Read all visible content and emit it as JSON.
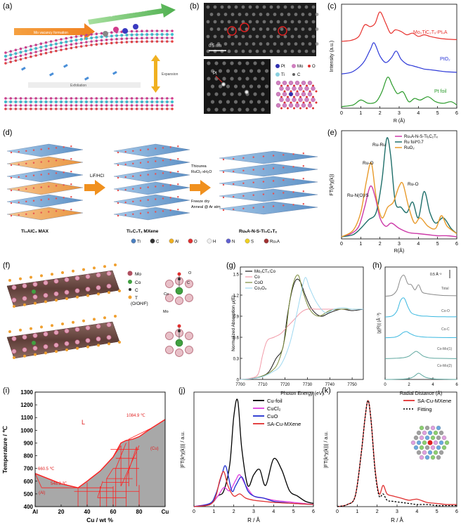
{
  "panel_labels": {
    "a": "(a)",
    "b": "(b)",
    "c": "(c)",
    "d": "(d)",
    "e": "(e)",
    "f": "(f)",
    "g": "(g)",
    "h": "(h)",
    "i": "(i)",
    "j": "(j)",
    "k": "(k)"
  },
  "panel_a": {
    "step1": "Mo vacancy formation",
    "step2": "Single atom immobilization",
    "step3": "Exfoliation",
    "step4": "Expansion"
  },
  "panel_b": {
    "scale": "0.5 nm",
    "pt_label": "Pt",
    "legend": [
      "Pt",
      "Mo",
      "O",
      "Ti",
      "C"
    ]
  },
  "panel_d": {
    "stage1": "Ti₃AlC₂ MAX",
    "stage2": "Ti₃C₂Tₓ MXene",
    "stage3": "RuₛA-N-S-Ti₃C₂Tₓ",
    "arrow1": "LiF/HCl",
    "arrow2_lines": [
      "Thiourea",
      "RuCl₃·xH₂O",
      "Freeze dry",
      "Anneal @ Ar atm"
    ],
    "legend": [
      "Ti",
      "C",
      "Al",
      "O",
      "H",
      "N",
      "S",
      "RuₛA"
    ]
  },
  "panel_f": {
    "legend": [
      "Mo",
      "Co",
      "C",
      "T (O/OH/F)"
    ],
    "t_label": "T",
    "side_label_lines": [
      "T",
      "(O/OH/F)"
    ],
    "c_label": "C",
    "o_label": "O",
    "co_label": "Co",
    "mo_label": "Mo"
  },
  "panel_h": {
    "scale_label": "0.5 Å⁻³"
  },
  "panel_i": {
    "region_L": "L",
    "t1": "1084.9 ℃",
    "t2": "660.5 ℃",
    "t3": "548.2 ℃",
    "al": "(Al)",
    "cu": "(Cu)"
  },
  "panel_k": {
    "legend_sa": "SA-Cu-MXene",
    "legend_fit": "Fitting"
  },
  "chart_data": [
    {
      "panel": "c",
      "type": "line",
      "xlabel": "R (Å)",
      "ylabel": "Intensity (a.u.)",
      "xlim": [
        0,
        6
      ],
      "xticks": [
        0,
        1,
        2,
        3,
        4,
        5,
        6
      ],
      "series": [
        {
          "name": "Mo₂TiC₂Tₓ-PtₛA",
          "color": "#e8322e",
          "offset": 2.0,
          "x": [
            0,
            0.5,
            0.9,
            1.2,
            1.5,
            1.75,
            2.0,
            2.3,
            2.55,
            2.8,
            3.1,
            3.4,
            3.7,
            4.0,
            4.3,
            4.6,
            5.0,
            5.4,
            6.0
          ],
          "y": [
            0.05,
            0.08,
            0.2,
            0.55,
            0.5,
            0.6,
            0.95,
            0.6,
            0.3,
            0.4,
            0.35,
            0.25,
            0.3,
            0.2,
            0.25,
            0.2,
            0.15,
            0.12,
            0.1
          ]
        },
        {
          "name": "PtO₂",
          "color": "#2e3ad8",
          "offset": 1.0,
          "x": [
            0,
            0.5,
            0.9,
            1.2,
            1.5,
            1.7,
            2.0,
            2.3,
            2.6,
            2.85,
            3.1,
            3.4,
            3.7,
            4.0,
            4.3,
            4.6,
            5.0,
            5.4,
            6.0
          ],
          "y": [
            0.05,
            0.1,
            0.25,
            0.45,
            0.8,
            1.0,
            0.6,
            0.4,
            0.55,
            0.75,
            0.5,
            0.35,
            0.3,
            0.25,
            0.2,
            0.18,
            0.15,
            0.12,
            0.1
          ]
        },
        {
          "name": "Pt foil",
          "color": "#2a9a2a",
          "offset": 0.0,
          "x": [
            0,
            0.6,
            1.0,
            1.4,
            1.8,
            2.1,
            2.4,
            2.65,
            2.9,
            3.2,
            3.5,
            3.8,
            4.1,
            4.5,
            4.9,
            5.3,
            5.7,
            6.0
          ],
          "y": [
            0.05,
            0.1,
            0.25,
            0.15,
            0.2,
            0.5,
            0.95,
            0.7,
            0.45,
            0.5,
            0.2,
            0.3,
            0.25,
            0.35,
            0.2,
            0.15,
            0.2,
            0.1
          ]
        }
      ]
    },
    {
      "panel": "e",
      "type": "line",
      "xlabel": "R(Å)",
      "ylabel": "FT(k²χ(k))",
      "xlim": [
        0,
        6
      ],
      "xticks": [
        0,
        1,
        2,
        3,
        4,
        5,
        6
      ],
      "annotations": [
        "Ru-O",
        "Ru-Ru",
        "Ru-N(O)/S",
        "Ru-O"
      ],
      "series": [
        {
          "name": "RuₛA-N-S-Ti₃C₂Tₓ",
          "color": "#cc3aa8",
          "x": [
            0,
            0.5,
            0.9,
            1.2,
            1.5,
            1.75,
            2.0,
            2.3,
            2.6,
            3.0,
            3.5,
            4.0,
            4.5,
            5.0,
            5.5,
            6.0
          ],
          "y": [
            0.02,
            0.05,
            0.12,
            0.3,
            0.5,
            0.4,
            0.2,
            0.12,
            0.15,
            0.1,
            0.06,
            0.05,
            0.04,
            0.03,
            0.03,
            0.02
          ]
        },
        {
          "name": "Ru foil*0.7",
          "color": "#1f6f6a",
          "x": [
            0,
            0.6,
            1.0,
            1.4,
            1.8,
            2.1,
            2.35,
            2.55,
            2.8,
            3.1,
            3.4,
            3.7,
            4.0,
            4.3,
            4.6,
            4.9,
            5.3,
            5.7,
            6.0
          ],
          "y": [
            0.02,
            0.04,
            0.1,
            0.18,
            0.25,
            0.55,
            0.95,
            0.8,
            0.35,
            0.3,
            0.25,
            0.35,
            0.2,
            0.45,
            0.25,
            0.15,
            0.2,
            0.1,
            0.05
          ]
        },
        {
          "name": "RuO₂",
          "color": "#e89a2a",
          "x": [
            0,
            0.6,
            1.0,
            1.3,
            1.55,
            1.8,
            2.1,
            2.4,
            2.7,
            3.0,
            3.2,
            3.5,
            3.8,
            4.1,
            4.5,
            4.9,
            5.2,
            5.5,
            6.0
          ],
          "y": [
            0.02,
            0.08,
            0.25,
            0.55,
            0.72,
            0.4,
            0.2,
            0.3,
            0.35,
            0.5,
            0.52,
            0.3,
            0.15,
            0.2,
            0.12,
            0.1,
            0.22,
            0.12,
            0.05
          ]
        }
      ]
    },
    {
      "panel": "g",
      "type": "line",
      "xlabel": "Photon Energy (eV)",
      "ylabel": "Normalized Absorption μ(E)",
      "xlim": [
        7700,
        7755
      ],
      "xticks": [
        7700,
        7710,
        7720,
        7730,
        7740,
        7750
      ],
      "ylim": [
        0,
        1.6
      ],
      "yticks": [
        0.0,
        0.3,
        0.6,
        0.9,
        1.2,
        1.5
      ],
      "series": [
        {
          "name": "Mo₂CTₓ:Co",
          "color": "#1a1a1a",
          "x": [
            7700,
            7705,
            7710,
            7713,
            7716,
            7719,
            7721,
            7723,
            7725,
            7727,
            7729,
            7732,
            7736,
            7740,
            7745,
            7750,
            7755
          ],
          "y": [
            0.0,
            0.01,
            0.05,
            0.12,
            0.3,
            0.45,
            0.9,
            1.25,
            1.42,
            1.38,
            1.2,
            1.0,
            0.9,
            0.95,
            1.0,
            0.98,
            1.0
          ]
        },
        {
          "name": "Co",
          "color": "#f29aa8",
          "x": [
            7700,
            7705,
            7708,
            7710,
            7712,
            7715,
            7718,
            7721,
            7724,
            7727,
            7730,
            7735,
            7740,
            7745,
            7750,
            7755
          ],
          "y": [
            0.0,
            0.02,
            0.08,
            0.35,
            0.55,
            0.6,
            0.65,
            0.75,
            0.85,
            0.95,
            1.0,
            1.0,
            1.0,
            1.0,
            1.0,
            1.0
          ]
        },
        {
          "name": "CoO",
          "color": "#7a8a3a",
          "x": [
            7700,
            7705,
            7710,
            7714,
            7717,
            7720,
            7722,
            7724,
            7726,
            7728,
            7731,
            7735,
            7740,
            7745,
            7750,
            7755
          ],
          "y": [
            0.0,
            0.01,
            0.05,
            0.12,
            0.25,
            0.6,
            1.1,
            1.4,
            1.48,
            1.25,
            1.0,
            0.9,
            0.98,
            1.0,
            1.0,
            1.0
          ]
        },
        {
          "name": "Co₃O₄",
          "color": "#9fd8f0",
          "x": [
            7700,
            7705,
            7710,
            7714,
            7718,
            7722,
            7725,
            7727,
            7729,
            7731,
            7734,
            7738,
            7742,
            7746,
            7750,
            7755
          ],
          "y": [
            0.0,
            0.01,
            0.04,
            0.1,
            0.2,
            0.5,
            0.9,
            1.2,
            1.45,
            1.3,
            1.1,
            0.95,
            1.0,
            1.02,
            1.0,
            1.0
          ]
        }
      ]
    },
    {
      "panel": "h",
      "type": "line",
      "xlabel": "Radial Distance (Å)",
      "ylabel": "|χ(R)| (Å⁻³)",
      "xlim": [
        0,
        6
      ],
      "xticks": [
        0,
        2,
        4,
        6
      ],
      "series": [
        {
          "name": "Total",
          "color": "#8a8a8a",
          "offset": 4,
          "x": [
            0,
            0.6,
            1.0,
            1.3,
            1.6,
            1.9,
            2.2,
            2.5,
            2.8,
            3.1,
            3.5,
            4.0,
            4.5,
            5.0,
            6.0
          ],
          "y": [
            0.0,
            0.05,
            0.3,
            0.85,
            1.0,
            0.6,
            0.55,
            0.3,
            0.55,
            0.2,
            0.12,
            0.08,
            0.05,
            0.03,
            0.02
          ]
        },
        {
          "name": "Co-O",
          "color": "#3ab8e0",
          "offset": 3,
          "x": [
            0,
            0.6,
            1.0,
            1.3,
            1.6,
            1.9,
            2.2,
            2.6,
            3.0,
            3.5,
            4.0,
            5.0,
            6.0
          ],
          "y": [
            0.0,
            0.05,
            0.3,
            0.8,
            0.9,
            0.5,
            0.2,
            0.1,
            0.05,
            0.04,
            0.02,
            0.01,
            0.01
          ]
        },
        {
          "name": "Co-C",
          "color": "#3ab8e0",
          "offset": 2,
          "x": [
            0,
            0.8,
            1.2,
            1.5,
            1.8,
            2.1,
            2.5,
            3.0,
            3.5,
            4.0,
            5.0,
            6.0
          ],
          "y": [
            0.0,
            0.03,
            0.12,
            0.25,
            0.3,
            0.2,
            0.1,
            0.05,
            0.03,
            0.02,
            0.01,
            0.01
          ]
        },
        {
          "name": "Co-Mo(1)",
          "color": "#5fa8a0",
          "offset": 1,
          "x": [
            0,
            1.0,
            1.6,
            2.0,
            2.3,
            2.6,
            2.9,
            3.2,
            3.6,
            4.0,
            5.0,
            6.0
          ],
          "y": [
            0.0,
            0.02,
            0.05,
            0.12,
            0.25,
            0.35,
            0.25,
            0.12,
            0.05,
            0.02,
            0.01,
            0.0
          ]
        },
        {
          "name": "Co-Mo(2)",
          "color": "#5fa8a0",
          "offset": 0,
          "x": [
            0,
            1.0,
            1.8,
            2.2,
            2.5,
            2.8,
            3.1,
            3.4,
            3.8,
            4.2,
            5.0,
            6.0
          ],
          "y": [
            0.0,
            0.01,
            0.03,
            0.08,
            0.18,
            0.3,
            0.2,
            0.1,
            0.05,
            0.02,
            0.01,
            0.0
          ]
        }
      ]
    },
    {
      "panel": "i",
      "type": "line",
      "xlabel": "Cu / wt %",
      "ylabel": "Temperature / ℃",
      "xlim": [
        0,
        100
      ],
      "xticks": [
        0,
        20,
        40,
        60,
        80,
        100
      ],
      "xticklabels": [
        "Al",
        "20",
        "40",
        "60",
        "80",
        "Cu"
      ],
      "ylim": [
        400,
        1300
      ],
      "yticks": [
        400,
        500,
        600,
        700,
        800,
        900,
        1000,
        1100,
        1200,
        1300
      ],
      "series": [
        {
          "name": "liquidus",
          "color": "#ff2020",
          "x": [
            0,
            10,
            20,
            33,
            40,
            50,
            60,
            66,
            70,
            75,
            80,
            90,
            100
          ],
          "y": [
            660.5,
            620,
            580,
            548.2,
            600,
            680,
            790,
            900,
            920,
            930,
            950,
            1020,
            1084.9
          ]
        }
      ]
    },
    {
      "panel": "j",
      "type": "line",
      "xlabel": "R / Å",
      "ylabel": "|FT(k³χ(k))| / a.u.",
      "xlim": [
        0,
        6
      ],
      "xticks": [
        0,
        1,
        2,
        3,
        4,
        5,
        6
      ],
      "series": [
        {
          "name": "Cu-foil",
          "color": "#000000",
          "x": [
            0,
            0.8,
            1.2,
            1.5,
            1.8,
            2.0,
            2.2,
            2.4,
            2.7,
            3.0,
            3.3,
            3.6,
            4.0,
            4.4,
            4.8,
            5.2,
            5.6,
            6.0
          ],
          "y": [
            0.0,
            0.02,
            0.1,
            0.15,
            0.4,
            0.85,
            1.0,
            0.55,
            0.2,
            0.3,
            0.35,
            0.2,
            0.45,
            0.35,
            0.15,
            0.1,
            0.05,
            0.03
          ]
        },
        {
          "name": "CuCl₂",
          "color": "#e040e0",
          "x": [
            0,
            0.8,
            1.2,
            1.5,
            1.8,
            2.1,
            2.3,
            2.6,
            3.0,
            3.5,
            4.0,
            4.5,
            5.0,
            6.0
          ],
          "y": [
            0.0,
            0.03,
            0.1,
            0.18,
            0.15,
            0.25,
            0.3,
            0.2,
            0.1,
            0.08,
            0.06,
            0.05,
            0.04,
            0.02
          ]
        },
        {
          "name": "CuO",
          "color": "#2030d0",
          "x": [
            0,
            0.8,
            1.1,
            1.4,
            1.6,
            1.9,
            2.1,
            2.4,
            2.7,
            3.0,
            3.5,
            4.0,
            4.5,
            5.0,
            6.0
          ],
          "y": [
            0.0,
            0.03,
            0.12,
            0.3,
            0.38,
            0.15,
            0.2,
            0.28,
            0.15,
            0.1,
            0.08,
            0.05,
            0.04,
            0.03,
            0.02
          ]
        },
        {
          "name": "SA-Cu-MXene",
          "color": "#e03030",
          "x": [
            0,
            0.8,
            1.1,
            1.3,
            1.5,
            1.7,
            2.0,
            2.3,
            2.6,
            3.0,
            3.5,
            4.0,
            5.0,
            6.0
          ],
          "y": [
            0.0,
            0.02,
            0.1,
            0.25,
            0.33,
            0.2,
            0.1,
            0.12,
            0.08,
            0.06,
            0.05,
            0.04,
            0.03,
            0.02
          ]
        }
      ]
    },
    {
      "panel": "k",
      "type": "line",
      "xlabel": "R / Å",
      "ylabel": "|FT(k³χ(k))| / a.u.",
      "xlim": [
        0,
        6
      ],
      "xticks": [
        0,
        1,
        2,
        3,
        4,
        5,
        6
      ],
      "series": [
        {
          "name": "SA-Cu-MXene",
          "color": "#e03030",
          "dash": false,
          "x": [
            0,
            0.5,
            0.9,
            1.2,
            1.4,
            1.55,
            1.7,
            1.9,
            2.1,
            2.3,
            2.5,
            2.8,
            3.2,
            3.6,
            4.0,
            4.5,
            5.0,
            5.5,
            6.0
          ],
          "y": [
            0.0,
            0.02,
            0.1,
            0.5,
            0.85,
            1.0,
            0.8,
            0.35,
            0.12,
            0.2,
            0.12,
            0.1,
            0.08,
            0.06,
            0.07,
            0.04,
            0.03,
            0.02,
            0.02
          ]
        },
        {
          "name": "Fitting",
          "color": "#000000",
          "dash": true,
          "x": [
            0,
            0.5,
            0.9,
            1.2,
            1.4,
            1.55,
            1.7,
            1.9,
            2.1,
            2.3,
            2.5,
            2.8,
            3.2,
            3.6,
            4.0,
            4.5,
            5.0,
            5.5,
            6.0
          ],
          "y": [
            0.0,
            0.02,
            0.1,
            0.5,
            0.85,
            1.0,
            0.8,
            0.33,
            0.1,
            0.12,
            0.06,
            0.05,
            0.04,
            0.03,
            0.02,
            0.02,
            0.01,
            0.01,
            0.01
          ]
        }
      ]
    }
  ]
}
